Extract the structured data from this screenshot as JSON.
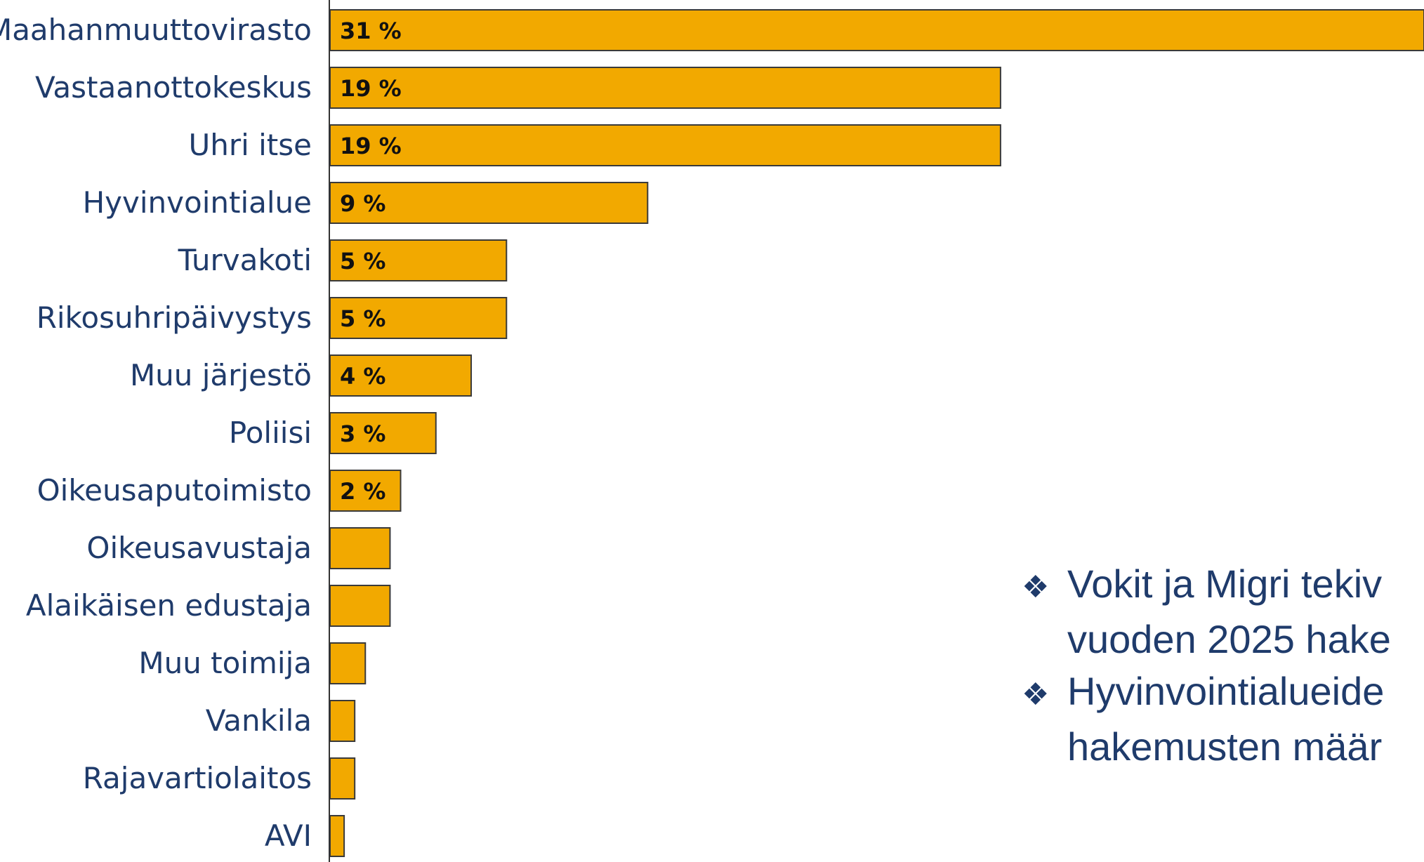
{
  "chart_data": {
    "type": "bar",
    "orientation": "horizontal",
    "categories": [
      "Maahanmuuttovirasto",
      "Vastaanottokeskus",
      "Uhri itse",
      "Hyvinvointialue",
      "Turvakoti",
      "Rikosuhripäivystys",
      "Muu järjestö",
      "Poliisi",
      "Oikeusaputoimisto",
      "Oikeusavustaja",
      "Alaikäisen edustaja",
      "Muu toimija",
      "Vankila",
      "Rajavartiolaitos",
      "AVI"
    ],
    "values": [
      31,
      19,
      19,
      9,
      5,
      5,
      4,
      3,
      2,
      1.7,
      1.7,
      1,
      0.7,
      0.7,
      0.4
    ],
    "data_labels": [
      "31 %",
      "19 %",
      "19 %",
      "9 %",
      "5 %",
      "5 %",
      "4 %",
      "3 %",
      "2 %",
      "",
      "",
      "",
      "",
      "",
      ""
    ],
    "xlim": [
      0,
      31
    ],
    "bar_color": "#f2a900",
    "bar_edge_color": "#3a3a3a",
    "label_color": "#1f3b6b"
  },
  "notes": {
    "bullet_icon": "four-diamond-bullet",
    "bullet_symbol": "❖",
    "items": [
      {
        "line1": "Vokit ja Migri tekiv",
        "line2": "vuoden 2025 hake"
      },
      {
        "line1": "Hyvinvointialueide",
        "line2": "hakemusten määr"
      }
    ]
  }
}
